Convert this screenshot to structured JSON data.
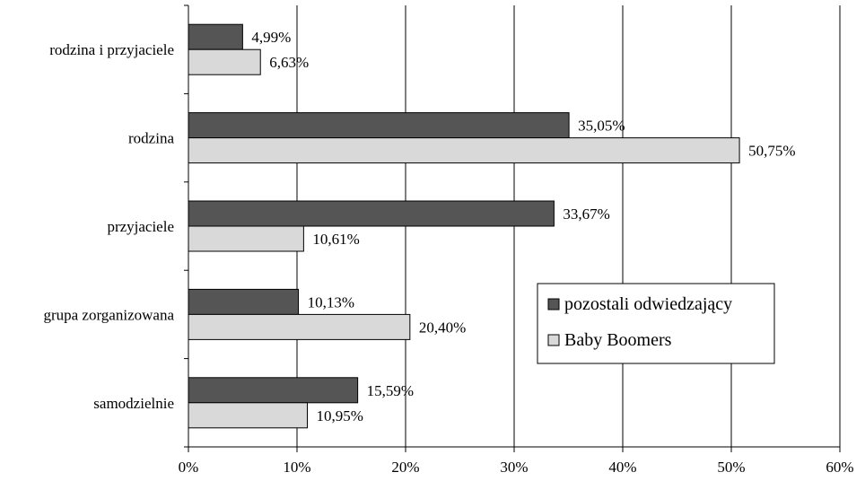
{
  "chart_data": {
    "type": "bar",
    "orientation": "horizontal",
    "categories": [
      "rodzina i przyjaciele",
      "rodzina",
      "przyjaciele",
      "grupa zorganizowana",
      "samodzielnie"
    ],
    "series": [
      {
        "name": "pozostali odwiedzający",
        "color": "#555555",
        "values": [
          4.99,
          35.05,
          33.67,
          10.13,
          15.59
        ],
        "labels": [
          "4,99%",
          "35,05%",
          "33,67%",
          "10,13%",
          "15,59%"
        ]
      },
      {
        "name": "Baby Boomers",
        "color": "#d9d9d9",
        "values": [
          6.63,
          50.75,
          10.61,
          20.4,
          10.95
        ],
        "labels": [
          "6,63%",
          "50,75%",
          "10,61%",
          "20,40%",
          "10,95%"
        ]
      }
    ],
    "xlim": [
      0,
      60
    ],
    "xticks": [
      0,
      10,
      20,
      30,
      40,
      50,
      60
    ],
    "xtick_labels": [
      "0%",
      "10%",
      "20%",
      "30%",
      "40%",
      "50%",
      "60%"
    ],
    "grid": "vertical",
    "legend_position": "right-center"
  }
}
